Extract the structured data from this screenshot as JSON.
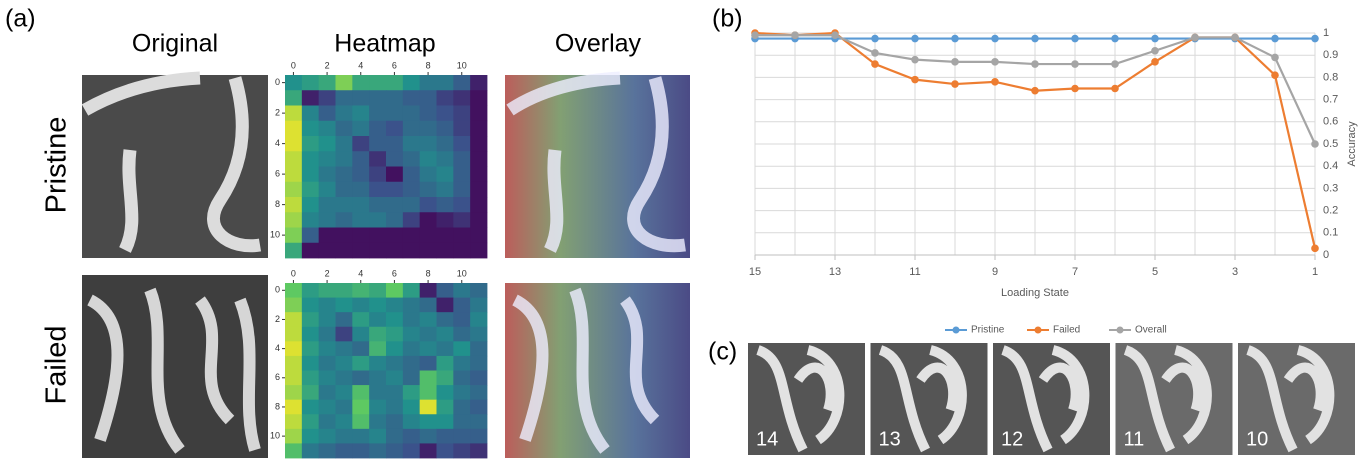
{
  "figure": {
    "panel_labels": [
      "(a)",
      "(b)",
      "(c)"
    ],
    "columns": [
      "Original",
      "Heatmap",
      "Overlay"
    ],
    "rows": [
      "Pristine",
      "Failed"
    ],
    "panel_c_labels": [
      14,
      13,
      12,
      11,
      10
    ]
  },
  "chart_data": [
    {
      "type": "line",
      "x_label": "Loading State",
      "y_label": "Accuracy",
      "x": [
        15,
        14,
        13,
        12,
        11,
        10,
        9,
        8,
        7,
        6,
        5,
        4,
        3,
        2,
        1
      ],
      "xlim": [
        15,
        1
      ],
      "xticks": [
        15,
        13,
        11,
        9,
        7,
        5,
        3,
        1
      ],
      "ylim": [
        0,
        1
      ],
      "yticks": [
        0,
        0.1,
        0.2,
        0.3,
        0.4,
        0.5,
        0.6,
        0.7,
        0.8,
        0.9,
        1
      ],
      "grid": true,
      "legend": "bottom",
      "series": [
        {
          "name": "Pristine",
          "color": "#5b9bd5",
          "values": [
            0.975,
            0.975,
            0.975,
            0.975,
            0.975,
            0.975,
            0.975,
            0.975,
            0.975,
            0.975,
            0.975,
            0.975,
            0.975,
            0.975,
            0.975
          ]
        },
        {
          "name": "Failed",
          "color": "#ed7d31",
          "values": [
            1,
            0.99,
            1,
            0.86,
            0.79,
            0.77,
            0.78,
            0.74,
            0.75,
            0.75,
            0.87,
            0.98,
            0.98,
            0.81,
            0.03
          ]
        },
        {
          "name": "Overall",
          "color": "#a5a5a5",
          "values": [
            0.99,
            0.99,
            0.99,
            0.91,
            0.88,
            0.87,
            0.87,
            0.86,
            0.86,
            0.86,
            0.92,
            0.98,
            0.98,
            0.89,
            0.5
          ]
        }
      ]
    },
    {
      "type": "heatmap",
      "xlim": [
        -0.5,
        11.5
      ],
      "ylim": [
        -0.5,
        11.5
      ],
      "xticks": [
        0,
        2,
        4,
        6,
        8,
        10
      ],
      "yticks": [
        0,
        2,
        4,
        6,
        8,
        10
      ],
      "values": [
        [
          0.5,
          0.55,
          0.6,
          0.8,
          0.6,
          0.6,
          0.6,
          0.5,
          0.4,
          0.4,
          0.3,
          0.1
        ],
        [
          0.6,
          0.1,
          0.2,
          0.35,
          0.35,
          0.35,
          0.35,
          0.3,
          0.3,
          0.2,
          0.15,
          0.05
        ],
        [
          0.9,
          0.45,
          0.3,
          0.4,
          0.45,
          0.35,
          0.35,
          0.35,
          0.3,
          0.25,
          0.2,
          0.05
        ],
        [
          0.95,
          0.5,
          0.45,
          0.35,
          0.4,
          0.3,
          0.25,
          0.35,
          0.35,
          0.3,
          0.2,
          0.05
        ],
        [
          0.95,
          0.55,
          0.5,
          0.4,
          0.2,
          0.3,
          0.3,
          0.4,
          0.4,
          0.35,
          0.25,
          0.05
        ],
        [
          0.9,
          0.5,
          0.45,
          0.4,
          0.3,
          0.15,
          0.3,
          0.35,
          0.45,
          0.4,
          0.3,
          0.05
        ],
        [
          0.9,
          0.5,
          0.4,
          0.35,
          0.3,
          0.2,
          0.05,
          0.3,
          0.4,
          0.45,
          0.3,
          0.05
        ],
        [
          0.85,
          0.55,
          0.45,
          0.35,
          0.35,
          0.25,
          0.25,
          0.3,
          0.35,
          0.4,
          0.3,
          0.05
        ],
        [
          0.9,
          0.5,
          0.4,
          0.4,
          0.4,
          0.35,
          0.35,
          0.35,
          0.25,
          0.3,
          0.25,
          0.05
        ],
        [
          0.85,
          0.45,
          0.4,
          0.35,
          0.4,
          0.4,
          0.35,
          0.2,
          0.05,
          0.1,
          0.15,
          0.05
        ],
        [
          0.8,
          0.3,
          0.05,
          0.05,
          0.05,
          0.05,
          0.05,
          0.05,
          0.05,
          0.05,
          0.05,
          0.05
        ],
        [
          0.6,
          0.05,
          0.05,
          0.05,
          0.05,
          0.05,
          0.05,
          0.05,
          0.05,
          0.05,
          0.05,
          0.05
        ]
      ]
    },
    {
      "type": "heatmap",
      "xlim": [
        -0.5,
        11.5
      ],
      "ylim": [
        -0.5,
        11.5
      ],
      "xticks": [
        0,
        2,
        4,
        6,
        8,
        10
      ],
      "yticks": [
        0,
        2,
        4,
        6,
        8,
        10
      ],
      "values": [
        [
          0.75,
          0.55,
          0.6,
          0.6,
          0.65,
          0.6,
          0.75,
          0.55,
          0.1,
          0.3,
          0.4,
          0.35
        ],
        [
          0.8,
          0.5,
          0.45,
          0.5,
          0.45,
          0.5,
          0.45,
          0.4,
          0.35,
          0.1,
          0.3,
          0.4
        ],
        [
          0.9,
          0.55,
          0.45,
          0.35,
          0.55,
          0.45,
          0.5,
          0.4,
          0.45,
          0.35,
          0.3,
          0.45
        ],
        [
          0.9,
          0.5,
          0.4,
          0.2,
          0.45,
          0.6,
          0.55,
          0.45,
          0.4,
          0.45,
          0.35,
          0.4
        ],
        [
          0.95,
          0.55,
          0.45,
          0.4,
          0.35,
          0.65,
          0.5,
          0.4,
          0.45,
          0.4,
          0.5,
          0.35
        ],
        [
          0.9,
          0.5,
          0.4,
          0.45,
          0.55,
          0.45,
          0.4,
          0.35,
          0.3,
          0.55,
          0.4,
          0.35
        ],
        [
          0.9,
          0.55,
          0.45,
          0.4,
          0.35,
          0.4,
          0.45,
          0.35,
          0.7,
          0.6,
          0.35,
          0.3
        ],
        [
          0.85,
          0.6,
          0.4,
          0.45,
          0.7,
          0.4,
          0.4,
          0.55,
          0.7,
          0.5,
          0.4,
          0.35
        ],
        [
          0.95,
          0.5,
          0.45,
          0.4,
          0.75,
          0.45,
          0.4,
          0.5,
          0.95,
          0.55,
          0.35,
          0.3
        ],
        [
          0.9,
          0.55,
          0.4,
          0.45,
          0.7,
          0.4,
          0.35,
          0.45,
          0.5,
          0.5,
          0.35,
          0.35
        ],
        [
          0.85,
          0.5,
          0.45,
          0.4,
          0.4,
          0.45,
          0.35,
          0.3,
          0.35,
          0.3,
          0.3,
          0.3
        ],
        [
          0.7,
          0.4,
          0.35,
          0.3,
          0.3,
          0.35,
          0.3,
          0.25,
          0.1,
          0.25,
          0.2,
          0.15
        ]
      ]
    }
  ]
}
